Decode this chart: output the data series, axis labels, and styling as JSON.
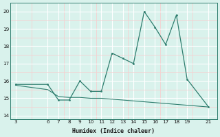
{
  "xlabel": "Humidex (Indice chaleur)",
  "x_data": [
    3,
    6,
    7,
    8,
    9,
    10,
    11,
    12,
    13,
    14,
    15,
    16,
    17,
    18,
    19,
    21
  ],
  "y_line1": [
    15.8,
    15.8,
    14.9,
    14.9,
    16.0,
    15.4,
    15.4,
    17.6,
    17.3,
    17.0,
    20.0,
    19.1,
    18.1,
    19.8,
    16.1,
    14.5
  ],
  "y_line2": [
    15.75,
    15.5,
    15.1,
    15.05,
    15.05,
    15.0,
    15.0,
    14.95,
    14.9,
    14.85,
    14.8,
    14.75,
    14.7,
    14.65,
    14.6,
    14.5
  ],
  "line_color": "#2e7d6e",
  "bg_color": "#d9f2ec",
  "major_grid_color": "#ffffff",
  "minor_grid_color": "#f5d0d0",
  "ylim": [
    13.8,
    20.5
  ],
  "yticks": [
    14,
    15,
    16,
    17,
    18,
    19,
    20
  ],
  "xlim": [
    2.5,
    21.8
  ],
  "xticks": [
    3,
    6,
    7,
    8,
    9,
    10,
    11,
    12,
    13,
    14,
    15,
    16,
    17,
    18,
    19,
    21
  ]
}
